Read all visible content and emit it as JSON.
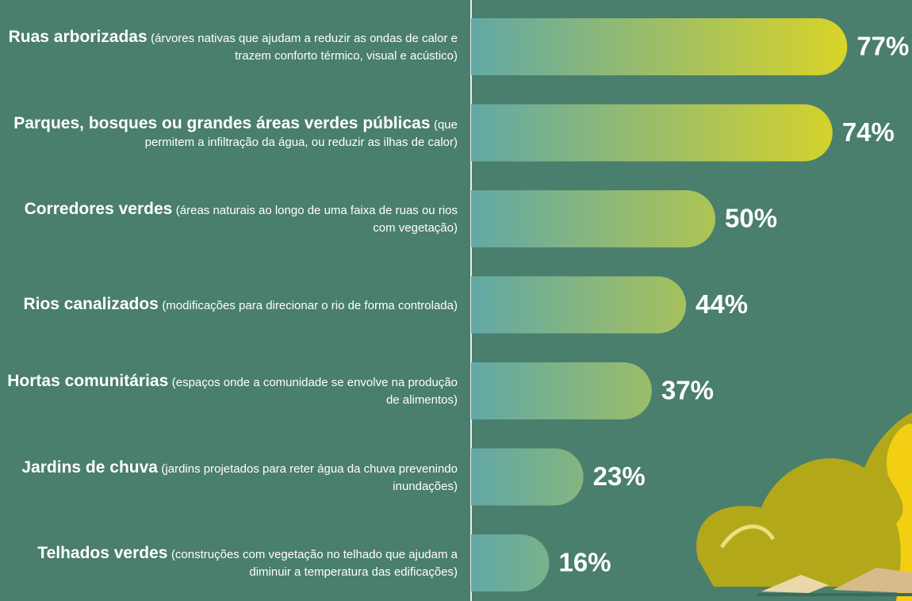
{
  "chart_data": {
    "type": "bar",
    "orientation": "horizontal",
    "categories": [
      "Ruas arborizadas",
      "Parques, bosques ou grandes áreas verdes públicas",
      "Corredores verdes",
      "Rios canalizados",
      "Hortas comunitárias",
      "Jardins de chuva",
      "Telhados verdes"
    ],
    "descriptions": [
      "(árvores nativas que ajudam a reduzir as ondas de calor e trazem conforto térmico, visual e acústico)",
      "(que permitem a infiltração da água, ou reduzir as ilhas de calor)",
      "(áreas naturais ao longo de uma faixa de ruas ou rios com vegetação)",
      "(modificações para direcionar o rio de forma controlada)",
      "(espaços onde a comunidade se envolve na produção de alimentos)",
      "(jardins projetados para reter água da chuva prevenindo inundações)",
      "(construções com vegetação no telhado que ajudam a diminuir a temperatura das edificações)"
    ],
    "values": [
      77,
      74,
      50,
      44,
      37,
      23,
      16
    ],
    "value_labels": [
      "77%",
      "74%",
      "50%",
      "44%",
      "37%",
      "23%",
      "16%"
    ],
    "color_start": "#62a8a6",
    "color_end": "#d8d427"
  }
}
